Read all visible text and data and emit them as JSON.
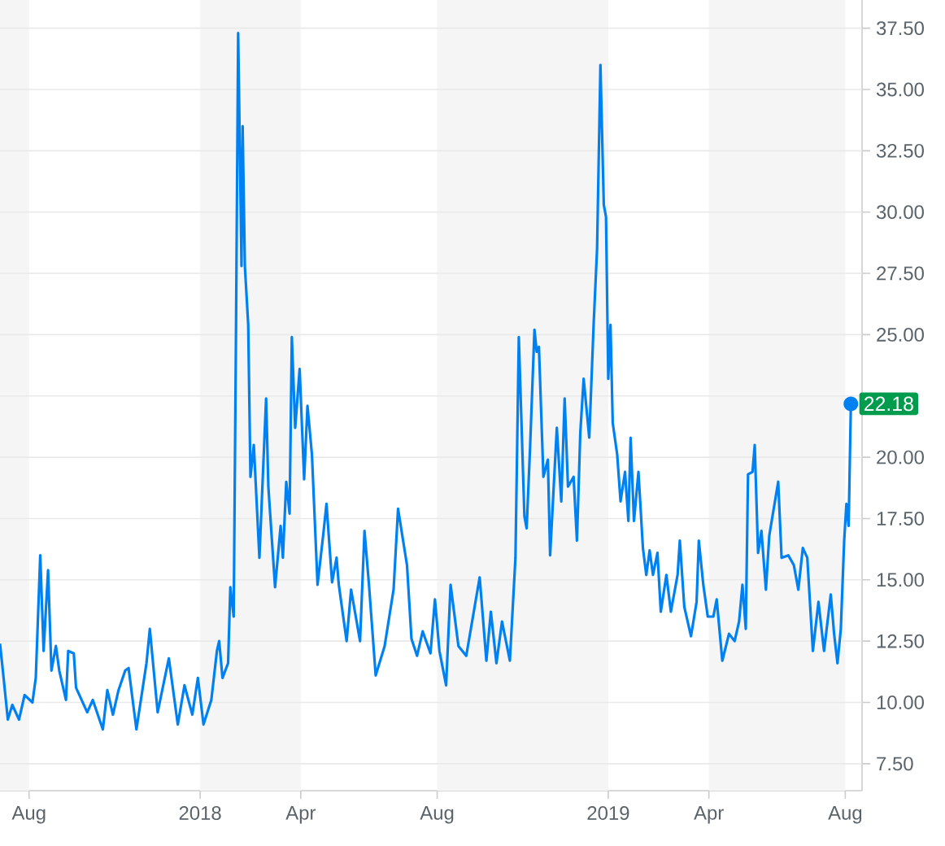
{
  "chart_data": {
    "type": "line",
    "color": "#0081f2",
    "grid": "y",
    "x": [
      "2017-07-06",
      "2017-07-09",
      "2017-07-13",
      "2017-07-17",
      "2017-07-23",
      "2017-07-28",
      "2017-08-04",
      "2017-08-07",
      "2017-08-11",
      "2017-08-14",
      "2017-08-18",
      "2017-08-21",
      "2017-08-25",
      "2017-08-28",
      "2017-09-03",
      "2017-09-05",
      "2017-09-10",
      "2017-09-12",
      "2017-09-22",
      "2017-09-27",
      "2017-10-06",
      "2017-10-10",
      "2017-10-15",
      "2017-10-20",
      "2017-10-26",
      "2017-10-29",
      "2017-11-05",
      "2017-11-14",
      "2017-11-17",
      "2017-11-24",
      "2017-12-04",
      "2017-12-12",
      "2017-12-18",
      "2017-12-25",
      "2017-12-30",
      "2018-01-04",
      "2018-01-11",
      "2018-01-16",
      "2018-01-18",
      "2018-01-21",
      "2018-01-26",
      "2018-01-28",
      "2018-01-31",
      "2018-02-02",
      "2018-02-04",
      "2018-02-07",
      "2018-02-08",
      "2018-02-10",
      "2018-02-13",
      "2018-02-15",
      "2018-02-18",
      "2018-02-23",
      "2018-03-01",
      "2018-03-03",
      "2018-03-09",
      "2018-03-14",
      "2018-03-16",
      "2018-03-19",
      "2018-03-22",
      "2018-03-24",
      "2018-03-27",
      "2018-03-31",
      "2018-04-04",
      "2018-04-07",
      "2018-04-11",
      "2018-04-16",
      "2018-04-21",
      "2018-04-24",
      "2018-04-29",
      "2018-05-03",
      "2018-05-05",
      "2018-05-12",
      "2018-05-16",
      "2018-05-24",
      "2018-05-28",
      "2018-06-01",
      "2018-06-07",
      "2018-06-15",
      "2018-06-23",
      "2018-06-27",
      "2018-07-05",
      "2018-07-09",
      "2018-07-14",
      "2018-07-19",
      "2018-07-26",
      "2018-07-30",
      "2018-08-03",
      "2018-08-09",
      "2018-08-13",
      "2018-08-20",
      "2018-08-27",
      "2018-09-02",
      "2018-09-08",
      "2018-09-14",
      "2018-09-18",
      "2018-09-23",
      "2018-09-28",
      "2018-10-05",
      "2018-10-10",
      "2018-10-13",
      "2018-10-18",
      "2018-10-20",
      "2018-10-23",
      "2018-10-27",
      "2018-10-29",
      "2018-10-31",
      "2018-11-04",
      "2018-11-08",
      "2018-11-10",
      "2018-11-16",
      "2018-11-20",
      "2018-11-23",
      "2018-11-26",
      "2018-12-01",
      "2018-12-04",
      "2018-12-07",
      "2018-12-10",
      "2018-12-15",
      "2018-12-19",
      "2018-12-22",
      "2018-12-25",
      "2018-12-28",
      "2018-12-30",
      "2019-01-01",
      "2019-01-03",
      "2019-01-05",
      "2019-01-09",
      "2019-01-12",
      "2019-01-16",
      "2019-01-19",
      "2019-01-21",
      "2019-01-24",
      "2019-01-28",
      "2019-02-01",
      "2019-02-04",
      "2019-02-07",
      "2019-02-10",
      "2019-02-14",
      "2019-02-17",
      "2019-02-22",
      "2019-02-26",
      "2019-03-04",
      "2019-03-06",
      "2019-03-10",
      "2019-03-16",
      "2019-03-21",
      "2019-03-23",
      "2019-03-27",
      "2019-03-31",
      "2019-04-05",
      "2019-04-08",
      "2019-04-13",
      "2019-04-19",
      "2019-04-24",
      "2019-04-28",
      "2019-05-01",
      "2019-05-04",
      "2019-05-06",
      "2019-05-10",
      "2019-05-12",
      "2019-05-15",
      "2019-05-18",
      "2019-05-22",
      "2019-05-25",
      "2019-05-29",
      "2019-06-02",
      "2019-06-05",
      "2019-06-11",
      "2019-06-16",
      "2019-06-20",
      "2019-06-24",
      "2019-06-28",
      "2019-07-03",
      "2019-07-08",
      "2019-07-13",
      "2019-07-19",
      "2019-07-22",
      "2019-07-25",
      "2019-07-28",
      "2019-07-31",
      "2019-08-02",
      "2019-08-04",
      "2019-08-06"
    ],
    "values": [
      12.4,
      11.1,
      9.3,
      9.9,
      9.3,
      10.3,
      10.0,
      11.0,
      16.0,
      12.1,
      15.4,
      11.3,
      12.3,
      11.3,
      10.1,
      12.1,
      12.0,
      10.6,
      9.6,
      10.1,
      8.9,
      10.5,
      9.5,
      10.5,
      11.3,
      11.4,
      8.9,
      11.6,
      13.0,
      9.6,
      11.8,
      9.1,
      10.7,
      9.5,
      11.0,
      9.1,
      10.1,
      12.1,
      12.5,
      11.0,
      11.6,
      14.7,
      13.5,
      24.7,
      37.3,
      27.8,
      33.5,
      27.8,
      25.4,
      19.2,
      20.5,
      15.9,
      22.4,
      18.8,
      14.7,
      17.2,
      15.9,
      19.0,
      17.7,
      24.9,
      21.2,
      23.6,
      19.1,
      22.1,
      20.1,
      14.8,
      16.8,
      18.1,
      14.9,
      15.9,
      14.8,
      12.5,
      14.6,
      12.5,
      17.0,
      14.8,
      11.1,
      12.3,
      14.6,
      17.9,
      15.6,
      12.6,
      11.9,
      12.9,
      12.0,
      14.2,
      12.1,
      10.7,
      14.8,
      12.3,
      11.9,
      13.5,
      15.1,
      11.7,
      13.7,
      11.6,
      13.3,
      11.7,
      15.9,
      24.9,
      17.6,
      17.1,
      20.3,
      25.2,
      24.3,
      24.5,
      19.2,
      19.9,
      16.0,
      21.2,
      18.2,
      22.4,
      18.8,
      19.2,
      16.6,
      21.0,
      23.2,
      20.8,
      25.5,
      28.5,
      36.0,
      30.3,
      29.8,
      23.2,
      25.4,
      21.4,
      20.1,
      18.2,
      19.4,
      17.4,
      20.8,
      17.4,
      19.4,
      16.3,
      15.2,
      16.2,
      15.2,
      16.1,
      13.7,
      15.2,
      13.7,
      15.2,
      16.6,
      13.9,
      12.7,
      14.1,
      16.6,
      14.8,
      13.5,
      13.5,
      14.2,
      11.7,
      12.8,
      12.5,
      13.3,
      14.8,
      13.0,
      19.3,
      19.4,
      20.5,
      16.1,
      17.0,
      14.6,
      16.8,
      17.9,
      19.0,
      15.9,
      16.0,
      15.6,
      14.6,
      16.3,
      15.9,
      12.1,
      14.1,
      12.1,
      14.4,
      12.8,
      11.6,
      13.0,
      16.6,
      18.1,
      17.2,
      22.18
    ],
    "xlim": [
      "2017-07-06",
      "2019-08-16"
    ],
    "xticks": [
      {
        "value": "2017-08-01",
        "label": "Aug"
      },
      {
        "value": "2018-01-01",
        "label": "2018"
      },
      {
        "value": "2018-04-01",
        "label": "Apr"
      },
      {
        "value": "2018-08-01",
        "label": "Aug"
      },
      {
        "value": "2019-01-01",
        "label": "2019"
      },
      {
        "value": "2019-04-01",
        "label": "Apr"
      },
      {
        "value": "2019-08-01",
        "label": "Aug"
      }
    ],
    "ylim": [
      6.4,
      38.65
    ],
    "yticks": [
      {
        "value": 7.5,
        "label": "7.50"
      },
      {
        "value": 10,
        "label": "10.00"
      },
      {
        "value": 12.5,
        "label": "12.50"
      },
      {
        "value": 15,
        "label": "15.00"
      },
      {
        "value": 17.5,
        "label": "17.50"
      },
      {
        "value": 20,
        "label": "20.00"
      },
      {
        "value": 22.5,
        "label": null
      },
      {
        "value": 25,
        "label": "25.00"
      },
      {
        "value": 27.5,
        "label": "27.50"
      },
      {
        "value": 30,
        "label": "30.00"
      },
      {
        "value": 32.5,
        "label": "32.50"
      },
      {
        "value": 35,
        "label": "35.00"
      },
      {
        "value": 37.5,
        "label": "37.50"
      }
    ],
    "bands": [
      {
        "axis": "x",
        "from": "2017-07-06",
        "to": "2017-08-01",
        "color": "#f5f5f5"
      },
      {
        "axis": "x",
        "from": "2018-01-01",
        "to": "2018-04-01",
        "color": "#f5f5f5"
      },
      {
        "axis": "x",
        "from": "2018-08-01",
        "to": "2019-01-01",
        "color": "#f5f5f5"
      },
      {
        "axis": "x",
        "from": "2019-04-01",
        "to": "2019-08-01",
        "color": "#f5f5f5"
      }
    ],
    "annotations": [
      {
        "text": "22.18",
        "x": "2019-08-06",
        "y": 22.18
      }
    ]
  }
}
